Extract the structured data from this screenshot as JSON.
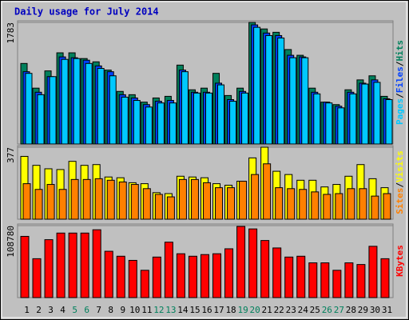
{
  "chart_data": [
    {
      "type": "bar",
      "title": "Daily usage for July 2014",
      "ylim": [
        0,
        1783
      ],
      "yticks": [
        1783
      ],
      "legend_separator": "/",
      "series": [
        {
          "name": "Hits",
          "color": "#00805c",
          "values": [
            1181,
            819,
            1072,
            1337,
            1337,
            1253,
            1205,
            1084,
            771,
            723,
            614,
            675,
            699,
            1157,
            795,
            819,
            1036,
            711,
            819,
            1783,
            1687,
            1638,
            1385,
            1301,
            819,
            614,
            578,
            795,
            940,
            1000,
            699
          ]
        },
        {
          "name": "Files",
          "color": "#0040ff",
          "values": [
            1060,
            759,
            988,
            1277,
            1265,
            1229,
            1145,
            1060,
            723,
            675,
            578,
            627,
            639,
            1084,
            759,
            759,
            892,
            651,
            771,
            1747,
            1627,
            1590,
            1301,
            1277,
            759,
            614,
            554,
            759,
            892,
            940,
            663
          ]
        },
        {
          "name": "Pages",
          "color": "#00c8ff",
          "values": [
            1036,
            723,
            988,
            1241,
            1253,
            1181,
            1108,
            1000,
            687,
            639,
            542,
            602,
            602,
            1060,
            747,
            747,
            867,
            627,
            747,
            1711,
            1590,
            1554,
            1265,
            1265,
            735,
            602,
            530,
            735,
            879,
            904,
            651
          ]
        }
      ]
    },
    {
      "type": "bar",
      "ylim": [
        0,
        377
      ],
      "yticks": [
        377
      ],
      "legend_separator": "/",
      "series": [
        {
          "name": "Visits",
          "color": "#ffff00",
          "values": [
            329,
            282,
            264,
            260,
            303,
            282,
            286,
            221,
            217,
            191,
            186,
            139,
            134,
            225,
            221,
            217,
            186,
            178,
            199,
            321,
            377,
            251,
            234,
            204,
            204,
            169,
            182,
            225,
            286,
            212,
            165
          ]
        },
        {
          "name": "Sites",
          "color": "#ff8000",
          "values": [
            186,
            156,
            182,
            156,
            208,
            208,
            212,
            204,
            195,
            182,
            160,
            130,
            117,
            208,
            208,
            191,
            165,
            165,
            199,
            234,
            290,
            165,
            160,
            156,
            143,
            130,
            134,
            160,
            160,
            121,
            134
          ]
        }
      ]
    },
    {
      "type": "bar",
      "ylim": [
        0,
        108780
      ],
      "yticks": [
        108780
      ],
      "series": [
        {
          "name": "KBytes",
          "color": "#ff0000",
          "values": [
            92522,
            58764,
            87521,
            97523,
            97523,
            97523,
            102525,
            70017,
            62515,
            56264,
            41260,
            61265,
            83772,
            66267,
            62515,
            65016,
            66267,
            73768,
            107528,
            103775,
            86271,
            75018,
            61265,
            62515,
            52513,
            52513,
            41260,
            52513,
            50012,
            77519,
            58764
          ]
        }
      ],
      "categories": [
        "1",
        "2",
        "3",
        "4",
        "5",
        "6",
        "7",
        "8",
        "9",
        "10",
        "11",
        "12",
        "13",
        "14",
        "15",
        "16",
        "17",
        "18",
        "19",
        "20",
        "21",
        "22",
        "23",
        "24",
        "25",
        "26",
        "27",
        "28",
        "29",
        "30",
        "31"
      ],
      "category_colors": [
        "#000",
        "#000",
        "#000",
        "#000",
        "#00805c",
        "#00805c",
        "#000",
        "#000",
        "#000",
        "#000",
        "#000",
        "#00805c",
        "#00805c",
        "#000",
        "#000",
        "#000",
        "#000",
        "#000",
        "#00805c",
        "#00805c",
        "#000",
        "#000",
        "#000",
        "#000",
        "#000",
        "#00805c",
        "#00805c",
        "#000",
        "#000",
        "#000",
        "#000"
      ]
    }
  ]
}
